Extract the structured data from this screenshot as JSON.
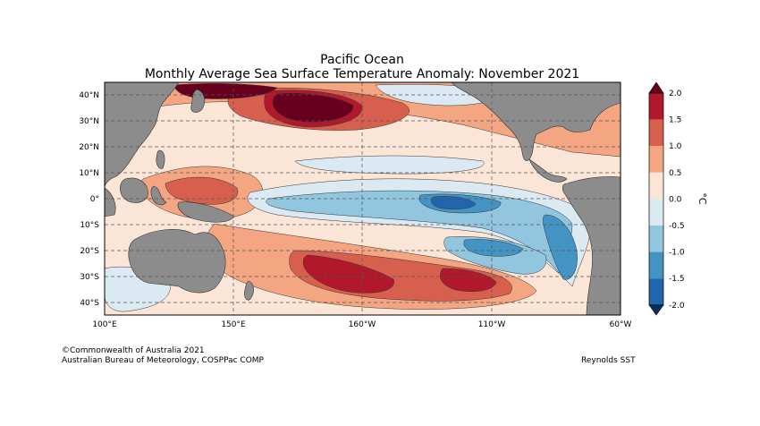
{
  "title": {
    "line1": "Pacific Ocean",
    "line2": "Monthly Average Sea Surface Temperature Anomaly: November 2021"
  },
  "map": {
    "lat_ticks": [
      "40°N",
      "30°N",
      "20°N",
      "10°N",
      "0°",
      "10°S",
      "20°S",
      "30°S",
      "40°S"
    ],
    "lon_ticks": [
      "100°E",
      "150°E",
      "160°W",
      "110°W",
      "60°W"
    ]
  },
  "colorbar": {
    "unit": "°C",
    "ticks": [
      "2.0",
      "1.5",
      "1.0",
      "0.5",
      "0.0",
      "-0.5",
      "-1.0",
      "-1.5",
      "-2.0"
    ],
    "colors": [
      "#67001f",
      "#b2182b",
      "#d6604d",
      "#f4a582",
      "#fbe5d6",
      "#dbe9f3",
      "#92c5de",
      "#4393c3",
      "#2166ac",
      "#053061"
    ],
    "land_color": "#8c8c8c"
  },
  "footer": {
    "copyright": "©Commonwealth of Australia 2021",
    "agency": "Australian Bureau of Meteorology, COSPPac COMP",
    "source": "Reynolds SST"
  }
}
